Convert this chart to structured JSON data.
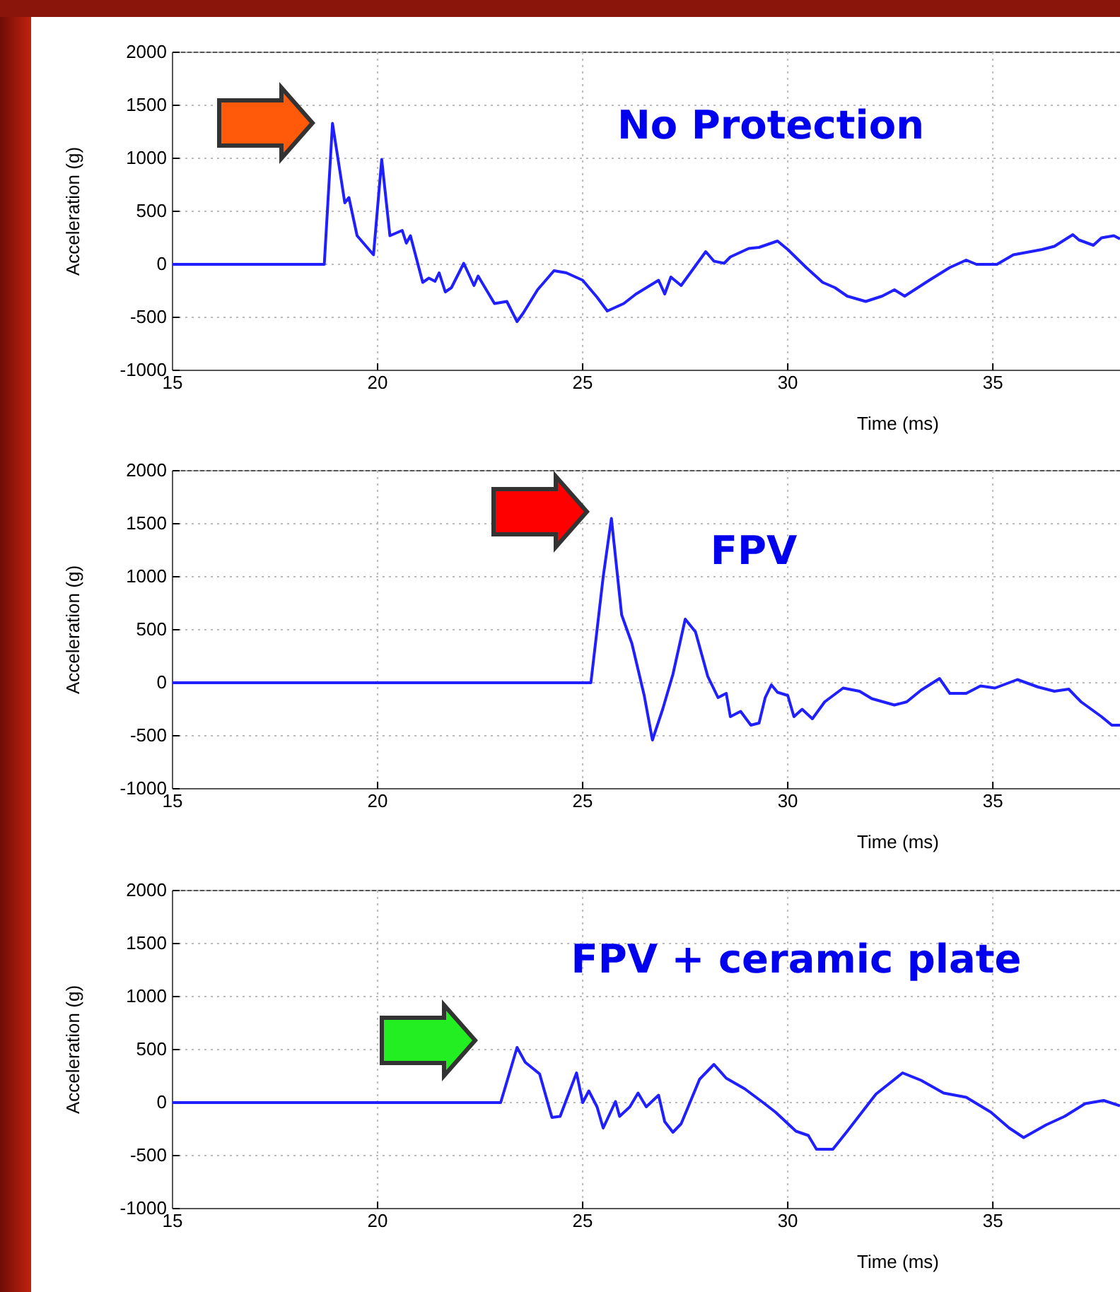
{
  "chart_data": [
    {
      "type": "line",
      "title": "No Protection",
      "xlabel": "Time (ms)",
      "ylabel": "Acceleration (g)",
      "xlim": [
        15,
        38.1
      ],
      "ylim": [
        -1000,
        2000
      ],
      "xticks": [
        15,
        20,
        25,
        30,
        35
      ],
      "yticks": [
        -1000,
        -500,
        0,
        500,
        1000,
        1500,
        2000
      ],
      "grid": true,
      "marker": "none",
      "line_style": "solid",
      "series": [
        {
          "color": "#1f1fff",
          "x": [
            15,
            18.7,
            18.9,
            19.2,
            19.3,
            19.5,
            19.9,
            20.1,
            20.3,
            20.6,
            20.7,
            20.8,
            21.1,
            21.25,
            21.4,
            21.5,
            21.65,
            21.8,
            22.1,
            22.35,
            22.45,
            22.65,
            22.85,
            23.15,
            23.4,
            23.55,
            23.9,
            24.3,
            24.6,
            25,
            25.35,
            25.6,
            26,
            26.3,
            26.85,
            27,
            27.15,
            27.4,
            27.7,
            28,
            28.2,
            28.45,
            28.6,
            29.05,
            29.3,
            29.75,
            30,
            30.45,
            30.85,
            31.15,
            31.45,
            31.9,
            32.3,
            32.6,
            32.85,
            33.45,
            33.95,
            34.35,
            34.6,
            35.1,
            35.5,
            36.2,
            36.5,
            36.95,
            37.1,
            37.45,
            37.65,
            37.95,
            38.1
          ],
          "values": [
            0,
            0,
            1330,
            580,
            630,
            270,
            90,
            990,
            270,
            320,
            200,
            270,
            -170,
            -130,
            -160,
            -80,
            -260,
            -220,
            10,
            -200,
            -110,
            -240,
            -370,
            -350,
            -540,
            -460,
            -240,
            -60,
            -80,
            -150,
            -310,
            -440,
            -370,
            -280,
            -150,
            -280,
            -120,
            -200,
            -40,
            120,
            30,
            10,
            70,
            150,
            160,
            220,
            140,
            -30,
            -170,
            -220,
            -300,
            -350,
            -300,
            -240,
            -300,
            -150,
            -30,
            40,
            0,
            0,
            90,
            140,
            170,
            280,
            230,
            180,
            250,
            270,
            240
          ]
        }
      ]
    },
    {
      "type": "line",
      "title": "FPV",
      "xlabel": "Time (ms)",
      "ylabel": "Acceleration (g)",
      "xlim": [
        15,
        38.1
      ],
      "ylim": [
        -1000,
        2000
      ],
      "xticks": [
        15,
        20,
        25,
        30,
        35
      ],
      "yticks": [
        -1000,
        -500,
        0,
        500,
        1000,
        1500,
        2000
      ],
      "grid": true,
      "marker": "none",
      "line_style": "solid",
      "series": [
        {
          "color": "#1f1fff",
          "x": [
            15,
            25.2,
            25.5,
            25.7,
            25.95,
            26.2,
            26.5,
            26.7,
            26.95,
            27.2,
            27.5,
            27.75,
            28.05,
            28.3,
            28.5,
            28.6,
            28.85,
            29.1,
            29.3,
            29.45,
            29.6,
            29.75,
            30,
            30.15,
            30.35,
            30.6,
            30.9,
            31.35,
            31.75,
            32.05,
            32.6,
            32.9,
            33.25,
            33.7,
            33.95,
            34.35,
            34.7,
            35.05,
            35.6,
            36.1,
            36.5,
            36.85,
            37.15,
            37.65,
            37.9,
            38.1
          ],
          "values": [
            0,
            0,
            1000,
            1550,
            640,
            370,
            -120,
            -540,
            -250,
            80,
            600,
            480,
            60,
            -140,
            -100,
            -320,
            -270,
            -400,
            -380,
            -140,
            -20,
            -90,
            -120,
            -320,
            -250,
            -340,
            -180,
            -50,
            -80,
            -150,
            -210,
            -180,
            -70,
            40,
            -100,
            -100,
            -30,
            -50,
            30,
            -40,
            -80,
            -60,
            -180,
            -320,
            -400,
            -400
          ]
        }
      ]
    },
    {
      "type": "line",
      "title": "FPV + ceramic plate",
      "xlabel": "Time (ms)",
      "ylabel": "Acceleration (g)",
      "xlim": [
        15,
        38.1
      ],
      "ylim": [
        -1000,
        2000
      ],
      "xticks": [
        15,
        20,
        25,
        30,
        35
      ],
      "yticks": [
        -1000,
        -500,
        0,
        500,
        1000,
        1500,
        2000
      ],
      "grid": true,
      "marker": "none",
      "line_style": "solid",
      "series": [
        {
          "color": "#1f1fff",
          "x": [
            15,
            23,
            23.4,
            23.6,
            23.95,
            24.25,
            24.45,
            24.85,
            25,
            25.15,
            25.35,
            25.5,
            25.8,
            25.9,
            26.15,
            26.35,
            26.55,
            26.85,
            27,
            27.2,
            27.4,
            27.85,
            28.2,
            28.5,
            28.95,
            29.4,
            29.7,
            30.2,
            30.5,
            30.7,
            31.1,
            31.45,
            31.85,
            32.15,
            32.8,
            33.25,
            33.8,
            34.35,
            34.95,
            35.4,
            35.75,
            36.3,
            36.75,
            37.25,
            37.7,
            38.1
          ],
          "values": [
            0,
            0,
            520,
            380,
            270,
            -140,
            -130,
            280,
            0,
            110,
            -40,
            -240,
            10,
            -130,
            -40,
            90,
            -40,
            70,
            -180,
            -280,
            -200,
            220,
            360,
            230,
            130,
            0,
            -90,
            -270,
            -310,
            -440,
            -440,
            -270,
            -70,
            80,
            280,
            210,
            90,
            50,
            -90,
            -240,
            -330,
            -210,
            -130,
            -10,
            20,
            -30
          ]
        }
      ]
    }
  ]
}
